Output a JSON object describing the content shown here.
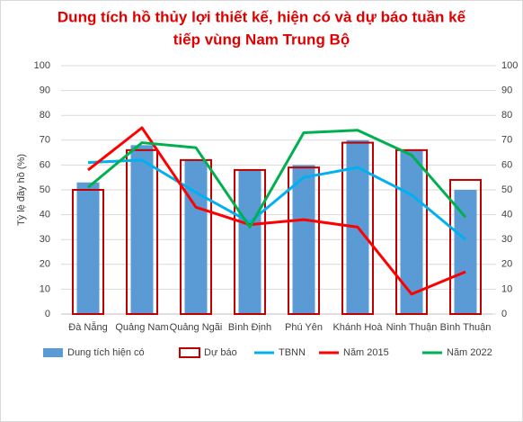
{
  "chart_data": {
    "type": "bar",
    "title": [
      "Dung tích hồ thủy lợi thiết kế, hiện có và dự báo tuần kế",
      "tiếp vùng Nam Trung Bộ"
    ],
    "y_label": "Tỷ lệ đầy hồ (%)",
    "categories": [
      "Đà Nẵng",
      "Quảng Nam",
      "Quảng Ngãi",
      "Bình Định",
      "Phú Yên",
      "Khánh Hoà",
      "Ninh Thuận",
      "Bình Thuận"
    ],
    "series": [
      {
        "name": "Dung tích hiện có",
        "type": "bar",
        "fill": true,
        "color": "#5b9bd5",
        "values": [
          53,
          68,
          62,
          58,
          60,
          70,
          66,
          50
        ]
      },
      {
        "name": "Dự báo",
        "type": "bar",
        "fill": false,
        "color": "#c00000",
        "values": [
          50,
          66,
          62,
          58,
          59,
          69,
          66,
          54
        ]
      },
      {
        "name": "TBNN",
        "type": "line",
        "color": "#00b0f0",
        "values": [
          61,
          62,
          49,
          37,
          55,
          59,
          48,
          30
        ]
      },
      {
        "name": "Năm 2015",
        "type": "line",
        "color": "#ff0000",
        "values": [
          58,
          75,
          43,
          36,
          38,
          35,
          8,
          17
        ]
      },
      {
        "name": "Năm 2022",
        "type": "line",
        "color": "#00b050",
        "values": [
          51,
          69,
          67,
          35,
          73,
          74,
          64,
          39
        ]
      }
    ],
    "ylim": [
      0,
      100
    ],
    "yticks": [
      0,
      10,
      20,
      30,
      40,
      50,
      60,
      70,
      80,
      90,
      100
    ],
    "y2lim": [
      0,
      100
    ],
    "y2ticks": [
      0,
      10,
      20,
      30,
      40,
      50,
      60,
      70,
      80,
      90,
      100
    ],
    "grid": true,
    "legend": "bottom"
  }
}
